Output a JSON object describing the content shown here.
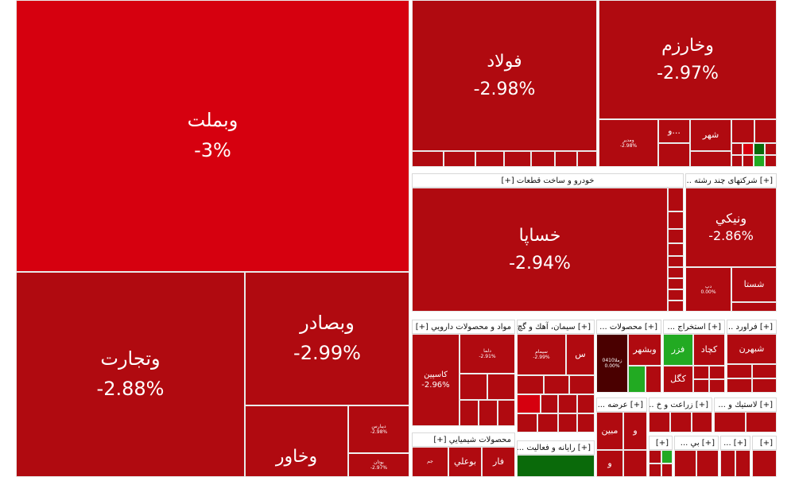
{
  "tiles": {
    "vabmellat": {
      "name": "وبملت",
      "pct": "-3%"
    },
    "vtejarat": {
      "name": "وتجارت",
      "pct": "-2.88%"
    },
    "vbsader": {
      "name": "وبصادر",
      "pct": "-2.99%"
    },
    "vkhavar": {
      "name": "وخاور"
    },
    "foolad": {
      "name": "فولاد",
      "pct": "-2.98%"
    },
    "vkharazm": {
      "name": "وخارزم",
      "pct": "-2.97%"
    },
    "khsapa": {
      "name": "خساپا",
      "pct": "-2.94%"
    },
    "vniki": {
      "name": "ونيكي",
      "pct": "-2.86%"
    },
    "shasta": {
      "name": "شستا"
    },
    "kaspian": {
      "name": "كاسپين",
      "pct": "-2.96%"
    },
    "vbshahr": {
      "name": "وبشهر"
    },
    "fazar": {
      "name": "فزر"
    },
    "kchad": {
      "name": "كچاد"
    },
    "kgol": {
      "name": "كگل"
    },
    "shabandar": {
      "name": "شبهرن"
    },
    "mobin": {
      "name": "مبين"
    },
    "boali": {
      "name": "بوعلي"
    },
    "far": {
      "name": "فار"
    },
    "shahr": {
      "name": "شهر"
    },
    "vo1": {
      "name": "و..."
    },
    "vo2": {
      "name": "و"
    },
    "vo3": {
      "name": "و"
    },
    "sa": {
      "name": "س"
    }
  },
  "minis": {
    "vamadir": {
      "name": "ومدير",
      "pct": "-2.98%"
    },
    "dibaris": {
      "name": "ديبارس",
      "pct": "-2.98%"
    },
    "butan": {
      "name": "بوتان",
      "pct": "-2.97%"
    },
    "dalama": {
      "name": "دلما",
      "pct": "-2.91%"
    },
    "simam": {
      "name": "سيمام",
      "pct": "-2.99%"
    },
    "zmmm": {
      "name": "زملا0410",
      "pct": "0.00%"
    },
    "dibar": {
      "name": "دپ",
      "pct": "0.00%"
    },
    "jam": {
      "name": "جم"
    }
  },
  "groups": {
    "khodro": "خودرو و ساخت قطعات [+]",
    "chandrashte": "[+] شرکتهای چند رشته ...",
    "daruei": "مواد و محصولات دارويي [+]",
    "siman": "[+] سيمان، آهك و گچ ...",
    "mahsulat": "[+] محصولات ...",
    "estekhraj": "[+] استخراج ...",
    "faravard": "[+] فراورد ...",
    "shimiaei": "محصولات شيميايي [+]",
    "rayaneh": "[+] رايانه و فعاليت ...",
    "arzeh": "[+] عرضه ...",
    "zeraat": "[+] زراعت و خ ...",
    "lastik": "[+] لاستيك و ...",
    "s1": "[+]",
    "s2": "[+] بي ...",
    "s3": "[+] ...",
    "s4": "[+]"
  }
}
